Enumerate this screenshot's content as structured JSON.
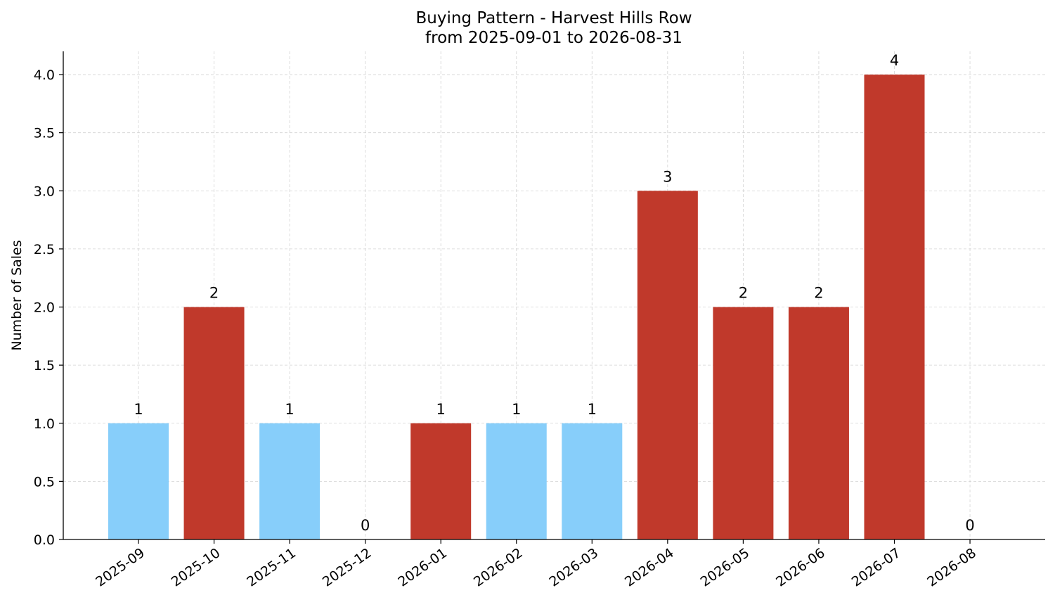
{
  "chart_data": {
    "type": "bar",
    "title": "Buying Pattern - Harvest Hills Row",
    "subtitle": "from 2025-09-01 to 2026-08-31",
    "xlabel": "",
    "ylabel": "Number of Sales",
    "ylim": [
      0,
      4.2
    ],
    "yticks": [
      "0.0",
      "0.5",
      "1.0",
      "1.5",
      "2.0",
      "2.5",
      "3.0",
      "3.5",
      "4.0"
    ],
    "ytick_values": [
      0,
      0.5,
      1,
      1.5,
      2,
      2.5,
      3,
      3.5,
      4
    ],
    "categories": [
      "2025-09",
      "2025-10",
      "2025-11",
      "2025-12",
      "2026-01",
      "2026-02",
      "2026-03",
      "2026-04",
      "2026-05",
      "2026-06",
      "2026-07",
      "2026-08"
    ],
    "values": [
      1,
      2,
      1,
      0,
      1,
      1,
      1,
      3,
      2,
      2,
      4,
      0
    ],
    "data_labels": [
      "1",
      "2",
      "1",
      "0",
      "1",
      "1",
      "1",
      "3",
      "2",
      "2",
      "4",
      "0"
    ],
    "bar_colors": [
      "#87cefa",
      "#c0392b",
      "#87cefa",
      "#87cefa",
      "#c0392b",
      "#87cefa",
      "#87cefa",
      "#c0392b",
      "#c0392b",
      "#c0392b",
      "#c0392b",
      "#87cefa"
    ],
    "grid": true,
    "legend": "none"
  }
}
